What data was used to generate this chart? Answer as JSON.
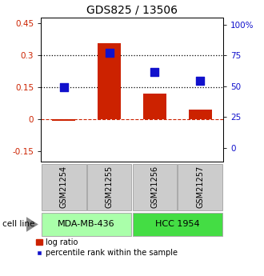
{
  "title": "GDS825 / 13506",
  "categories": [
    "GSM21254",
    "GSM21255",
    "GSM21256",
    "GSM21257"
  ],
  "log_ratio": [
    -0.01,
    0.355,
    0.12,
    0.045
  ],
  "percentile_rank": [
    0.49,
    0.77,
    0.615,
    0.545
  ],
  "ylim_left": [
    -0.2,
    0.475
  ],
  "ylim_right": [
    -0.111,
    1.056
  ],
  "yticks_left": [
    -0.15,
    0.0,
    0.15,
    0.3,
    0.45
  ],
  "yticks_right": [
    0.0,
    0.25,
    0.5,
    0.75,
    1.0
  ],
  "ytick_labels_left": [
    "-0.15",
    "0",
    "0.15",
    "0.3",
    "0.45"
  ],
  "ytick_labels_right": [
    "0",
    "25",
    "50",
    "75",
    "100%"
  ],
  "hlines_dotted": [
    0.15,
    0.3
  ],
  "hline_dashed": 0.0,
  "bar_color": "#cc2200",
  "dot_color": "#1111cc",
  "bar_width": 0.5,
  "dot_size": 45,
  "title_fontsize": 10,
  "tick_fontsize": 7.5,
  "label_fontsize": 8,
  "legend_fontsize": 7,
  "cell_spans": [
    [
      0,
      1,
      "MDA-MB-436",
      "#aaffaa"
    ],
    [
      2,
      3,
      "HCC 1954",
      "#44dd44"
    ]
  ]
}
